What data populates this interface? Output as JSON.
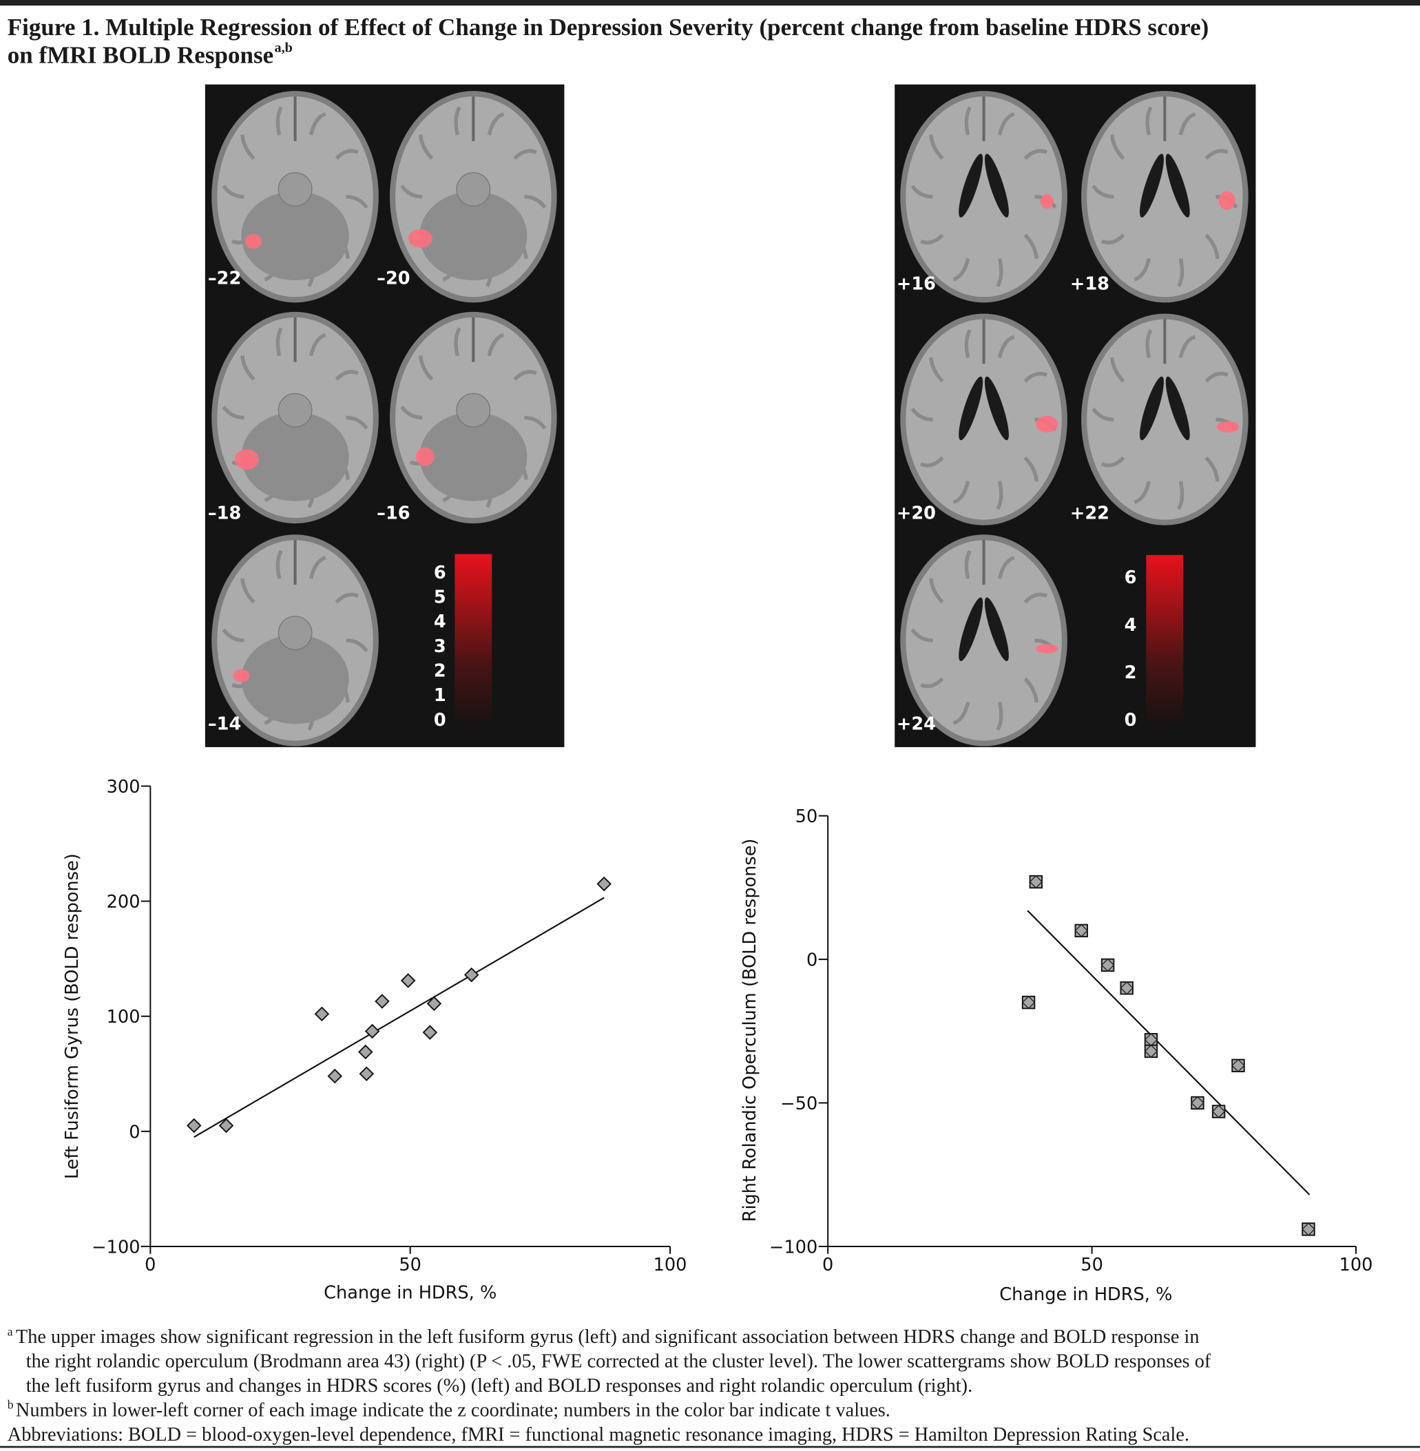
{
  "figure": {
    "title_lines": [
      "Figure 1. Multiple Regression of Effect of Change in Depression Severity (percent change from baseline HDRS score)",
      "on fMRI BOLD Response"
    ],
    "title_superscript": "a,b"
  },
  "images": [
    {
      "slices": [
        "–22",
        "–20",
        "–18",
        "–16",
        "–14"
      ],
      "colorbar": {
        "lim": [
          0,
          6.8
        ],
        "ticks": [
          0,
          1,
          2,
          3,
          4,
          5,
          6
        ]
      }
    },
    {
      "slices": [
        "+16",
        "+18",
        "+20",
        "+22",
        "+24"
      ],
      "colorbar": {
        "lim": [
          0,
          7
        ],
        "ticks": [
          0,
          2,
          4,
          6
        ]
      }
    }
  ],
  "chart_data": [
    {
      "type": "scatter",
      "x_label": "Change in HDRS, %",
      "y_label": "Left Fusiform Gyrus (BOLD response)",
      "x": [
        8.4,
        14.6,
        33,
        35.5,
        41.4,
        41.6,
        42.7,
        44.6,
        49.6,
        53.8,
        54.6,
        61.8,
        87.3
      ],
      "y": [
        5,
        5,
        102,
        48,
        69,
        50,
        87,
        113,
        131,
        86,
        111,
        136,
        215
      ],
      "marker": "diamond",
      "color": "#a6a6a6",
      "trend": {
        "x": [
          8.4,
          87.3
        ],
        "y": [
          -5,
          203
        ]
      },
      "xlim": [
        0,
        100
      ],
      "xticks": [
        0,
        50,
        100
      ],
      "ylim": [
        -100,
        300
      ],
      "yticks": [
        {
          "value": -100,
          "label": "−100"
        },
        0,
        100,
        200,
        300
      ]
    },
    {
      "type": "scatter",
      "x_label": "Change in HDRS, %",
      "y_label": "Right Rolandic Operculum (BOLD response)",
      "x": [
        39.4,
        38,
        48,
        53,
        56.6,
        61.2,
        61.2,
        70,
        74,
        77.7,
        91
      ],
      "y": [
        27,
        -15,
        10,
        -2,
        -10,
        -28,
        -32,
        -50,
        -53,
        -37,
        -94
      ],
      "marker": "square",
      "color": "#a6a6a6",
      "trend": {
        "x": [
          37.8,
          91.2
        ],
        "y": [
          17,
          -82
        ]
      },
      "xlim": [
        0,
        100
      ],
      "xticks": [
        0,
        50,
        100
      ],
      "ylim": [
        -100,
        50
      ],
      "yticks": [
        {
          "value": -100,
          "label": "−100"
        },
        {
          "value": -50,
          "label": "−50"
        },
        0,
        50
      ]
    }
  ],
  "footnotes": {
    "a": {
      "marker": "a",
      "lines": [
        "The upper images show significant regression in the left fusiform gyrus (left) and significant association between HDRS change and BOLD response in",
        "the right rolandic operculum (Brodmann area 43) (right) (P < .05, FWE corrected at the cluster level). The lower scattergrams show BOLD responses of",
        "the left fusiform gyrus and changes in HDRS scores (%) (left) and BOLD responses and right rolandic operculum (right)."
      ]
    },
    "b": {
      "marker": "b",
      "lines": [
        "Numbers in lower-left corner of each image indicate the z coordinate; numbers in the color bar indicate t values."
      ]
    },
    "abbreviations": "Abbreviations: BOLD = blood-oxygen-level dependence, fMRI = functional magnetic resonance imaging, HDRS = Hamilton Depression Rating Scale."
  }
}
